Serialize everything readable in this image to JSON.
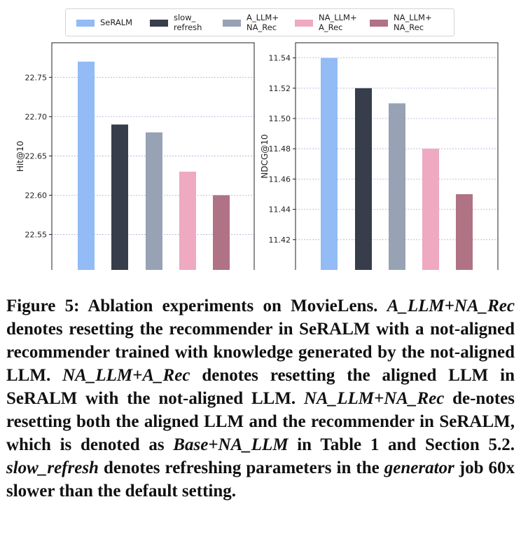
{
  "legend": [
    {
      "label": "SeRALM",
      "color": "#93bbf5"
    },
    {
      "label": "slow_\nrefresh",
      "color": "#373d4a"
    },
    {
      "label": "A_LLM+\nNA_Rec",
      "color": "#97a3b4"
    },
    {
      "label": "NA_LLM+\nA_Rec",
      "color": "#efa9c0"
    },
    {
      "label": "NA_LLM+\nNA_Rec",
      "color": "#b07285"
    }
  ],
  "chart_data": [
    {
      "type": "bar",
      "categories": [
        "SeRALM",
        "slow_refresh",
        "A_LLM+NA_Rec",
        "NA_LLM+A_Rec",
        "NA_LLM+NA_Rec"
      ],
      "values": [
        22.77,
        22.69,
        22.68,
        22.63,
        22.6
      ],
      "ylabel": "Hit@10",
      "yticks": [
        22.55,
        22.6,
        22.65,
        22.7,
        22.75
      ],
      "ytick_labels": [
        "22.55",
        "22.60",
        "22.65",
        "22.70",
        "22.75"
      ],
      "ylim": [
        22.505,
        22.794
      ],
      "grid": true
    },
    {
      "type": "bar",
      "categories": [
        "SeRALM",
        "slow_refresh",
        "A_LLM+NA_Rec",
        "NA_LLM+A_Rec",
        "NA_LLM+NA_Rec"
      ],
      "values": [
        11.54,
        11.52,
        11.51,
        11.48,
        11.45
      ],
      "ylabel": "NDCG@10",
      "yticks": [
        11.42,
        11.44,
        11.46,
        11.48,
        11.5,
        11.52,
        11.54
      ],
      "ytick_labels": [
        "11.42",
        "11.44",
        "11.46",
        "11.48",
        "11.50",
        "11.52",
        "11.54"
      ],
      "ylim": [
        11.4,
        11.55
      ],
      "grid": true
    }
  ],
  "caption": {
    "label": "Figure 5:",
    "segments": [
      {
        "t": " Ablation experiments on MovieLens. ",
        "i": false
      },
      {
        "t": "A_LLM+NA_Rec",
        "i": true
      },
      {
        "t": " denotes resetting the recommender in SeRALM with a not-aligned recommender trained with knowledge generated by the not-aligned LLM. ",
        "i": false
      },
      {
        "t": "NA_LLM+A_Rec",
        "i": true
      },
      {
        "t": " denotes resetting the aligned LLM in SeRALM with the not-aligned LLM. ",
        "i": false
      },
      {
        "t": "NA_LLM+NA_Rec",
        "i": true
      },
      {
        "t": " de-notes resetting both the aligned LLM and the recommender in SeRALM, which is denoted as ",
        "i": false
      },
      {
        "t": "Base+NA_LLM",
        "i": true
      },
      {
        "t": " in Table 1 and Section 5.2. ",
        "i": false
      },
      {
        "t": "slow_refresh",
        "i": true
      },
      {
        "t": " denotes refreshing parameters in the ",
        "i": false
      },
      {
        "t": "generator",
        "i": true
      },
      {
        "t": " job 60x slower than the default setting.",
        "i": false
      }
    ]
  }
}
